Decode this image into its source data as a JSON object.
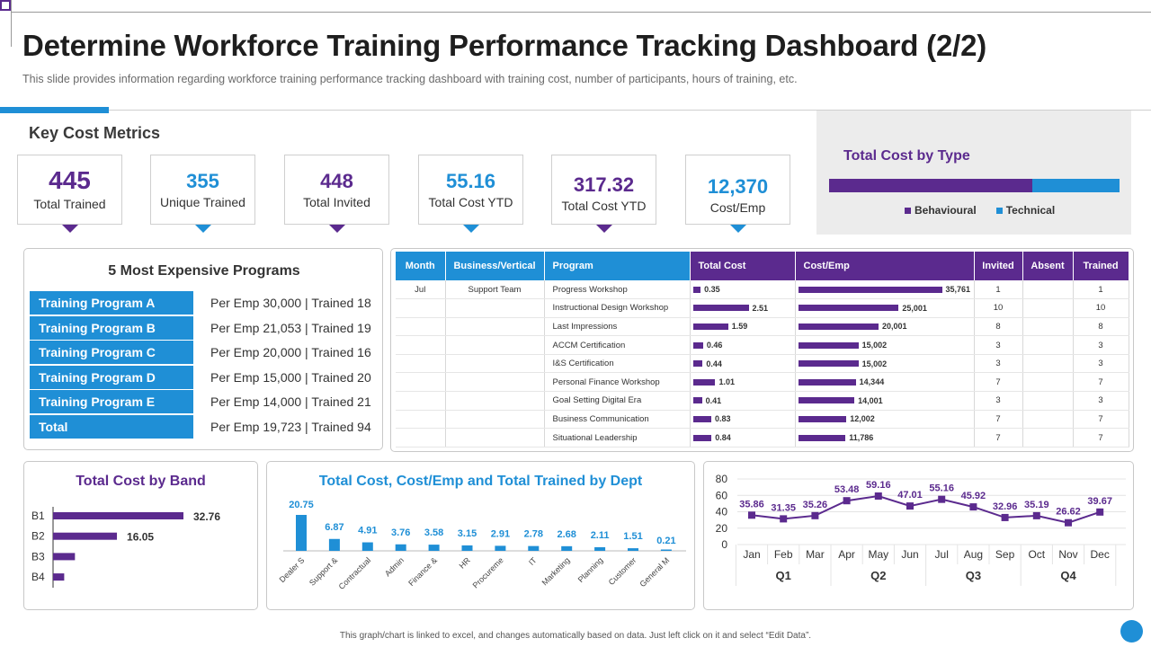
{
  "title": "Determine Workforce Training Performance Tracking Dashboard (2/2)",
  "subtitle": "This slide provides information regarding workforce training performance tracking dashboard with training cost, number of participants, hours of training, etc.",
  "key_cost_metrics": {
    "title": "Key Cost Metrics",
    "metrics": [
      {
        "value": "445",
        "label": "Total Trained",
        "color": "#5b2a8e"
      },
      {
        "value": "355",
        "label": "Unique Trained",
        "color": "#1f8fd6"
      },
      {
        "value": "448",
        "label": "Total Invited",
        "color": "#5b2a8e"
      },
      {
        "value": "55.16",
        "label": "Total Cost YTD",
        "color": "#1f8fd6"
      },
      {
        "value": "317.32",
        "label": "Total Cost YTD",
        "color": "#5b2a8e"
      },
      {
        "value": "12,370",
        "label": "Cost/Emp",
        "color": "#1f8fd6"
      }
    ]
  },
  "expensive_programs": {
    "title": "5 Most Expensive Programs",
    "rows": [
      {
        "name": "Training Program A",
        "info": "Per Emp 30,000 | Trained  18"
      },
      {
        "name": "Training Program B",
        "info": "Per Emp 21,053 | Trained  19"
      },
      {
        "name": "Training Program C",
        "info": "Per Emp 20,000 | Trained  16"
      },
      {
        "name": "Training Program D",
        "info": "Per Emp 15,000 | Trained  20"
      },
      {
        "name": "Training Program E",
        "info": "Per Emp 14,000 | Trained  21"
      },
      {
        "name": "Total",
        "info": "Per Emp 19,723 | Trained  94"
      }
    ]
  },
  "table": {
    "headers": [
      "Month",
      "Business/Vertical",
      "Program",
      "Total Cost",
      "Cost/Emp",
      "Invited",
      "Absent",
      "Trained"
    ],
    "rows": [
      {
        "month": "Jul",
        "vertical": "Support Team",
        "program": "Progress Workshop",
        "cost": 0.35,
        "cost_label": "0.35",
        "cost_emp": 35761,
        "cost_emp_label": "35,761",
        "invited": "1",
        "absent": "",
        "trained": "1"
      },
      {
        "month": "",
        "vertical": "",
        "program": "Instructional Design Workshop",
        "cost": 2.51,
        "cost_label": "2.51",
        "cost_emp": 25001,
        "cost_emp_label": "25,001",
        "invited": "10",
        "absent": "",
        "trained": "10"
      },
      {
        "month": "",
        "vertical": "",
        "program": "Last Impressions",
        "cost": 1.59,
        "cost_label": "1.59",
        "cost_emp": 20001,
        "cost_emp_label": "20,001",
        "invited": "8",
        "absent": "",
        "trained": "8"
      },
      {
        "month": "",
        "vertical": "",
        "program": "ACCM Certification",
        "cost": 0.46,
        "cost_label": "0.46",
        "cost_emp": 15002,
        "cost_emp_label": "15,002",
        "invited": "3",
        "absent": "",
        "trained": "3"
      },
      {
        "month": "",
        "vertical": "",
        "program": "I&S Certification",
        "cost": 0.44,
        "cost_label": "0.44",
        "cost_emp": 15002,
        "cost_emp_label": "15,002",
        "invited": "3",
        "absent": "",
        "trained": "3"
      },
      {
        "month": "",
        "vertical": "",
        "program": "Personal Finance Workshop",
        "cost": 1.01,
        "cost_label": "1.01",
        "cost_emp": 14344,
        "cost_emp_label": "14,344",
        "invited": "7",
        "absent": "",
        "trained": "7"
      },
      {
        "month": "",
        "vertical": "",
        "program": "Goal Setting Digital Era",
        "cost": 0.41,
        "cost_label": "0.41",
        "cost_emp": 14001,
        "cost_emp_label": "14,001",
        "invited": "3",
        "absent": "",
        "trained": "3"
      },
      {
        "month": "",
        "vertical": "",
        "program": "Business Communication",
        "cost": 0.83,
        "cost_label": "0.83",
        "cost_emp": 12002,
        "cost_emp_label": "12,002",
        "invited": "7",
        "absent": "",
        "trained": "7"
      },
      {
        "month": "",
        "vertical": "",
        "program": "Situational Leadership",
        "cost": 0.84,
        "cost_label": "0.84",
        "cost_emp": 11786,
        "cost_emp_label": "11,786",
        "invited": "7",
        "absent": "",
        "trained": "7"
      }
    ]
  },
  "colors": {
    "purple": "#5b2a8e",
    "blue": "#1f8fd6"
  },
  "footer": "This graph/chart is linked to excel, and changes automatically based on data. Just left click on it and select “Edit Data”.",
  "chart_data": [
    {
      "type": "bar",
      "title": "Total Cost by Type",
      "orientation": "horizontal-stacked",
      "series": [
        {
          "name": "Behavioural",
          "values": [
            70
          ],
          "color": "#5b2a8e"
        },
        {
          "name": "Technical",
          "values": [
            30
          ],
          "color": "#1f8fd6"
        }
      ],
      "legend": "bottom"
    },
    {
      "type": "bar",
      "title": "Total Cost by Band",
      "orientation": "horizontal",
      "categories": [
        "B1",
        "B2",
        "B3",
        "B4"
      ],
      "values": [
        32.76,
        16.05,
        5.5,
        2.8
      ],
      "labels": [
        "32.76",
        "16.05",
        "",
        ""
      ],
      "xlim": [
        0,
        40
      ]
    },
    {
      "type": "bar",
      "title": "Total Cost, Cost/Emp and Total Trained by Dept",
      "categories": [
        "Dealer S",
        "Support &",
        "Contractual",
        "Admin",
        "Finance &",
        "HR",
        "Procureme",
        "IT",
        "Marketing",
        "Planning",
        "Customer",
        "General M"
      ],
      "values": [
        20.75,
        6.87,
        4.91,
        3.76,
        3.58,
        3.15,
        2.91,
        2.78,
        2.68,
        2.11,
        1.51,
        0.21
      ],
      "labels": [
        "20.75",
        "6.87",
        "4.91",
        "3.76",
        "3.58",
        "3.15",
        "2.91",
        "2.78",
        "2.68",
        "2.11",
        "1.51",
        "0.21"
      ],
      "ylim": [
        0,
        22
      ]
    },
    {
      "type": "line",
      "title": "",
      "x": [
        "Jan",
        "Feb",
        "Mar",
        "Apr",
        "May",
        "Jun",
        "Jul",
        "Aug",
        "Sep",
        "Oct",
        "Nov",
        "Dec"
      ],
      "values": [
        35.86,
        31.35,
        35.26,
        53.48,
        59.16,
        47.01,
        55.16,
        45.92,
        32.96,
        35.19,
        26.62,
        39.67
      ],
      "labels": [
        "35.86",
        "31.35",
        "35.26",
        "53.48",
        "59.16",
        "47.01",
        "55.16",
        "45.92",
        "32.96",
        "35.19",
        "26.62",
        "39.67"
      ],
      "quarters": [
        "Q1",
        "Q2",
        "Q3",
        "Q4"
      ],
      "yticks": [
        "80",
        "60",
        "40",
        "20",
        "0"
      ],
      "ylim": [
        0,
        80
      ],
      "color": "#5b2a8e"
    }
  ]
}
